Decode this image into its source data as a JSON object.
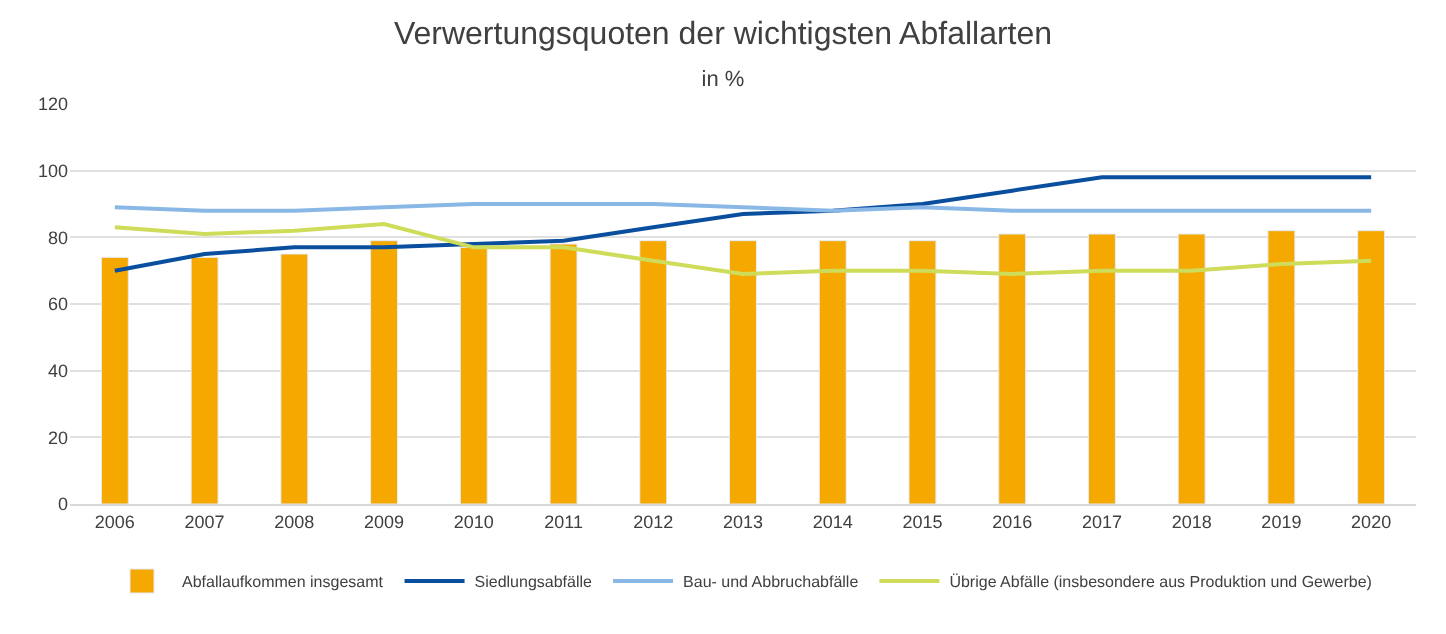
{
  "chart_data": {
    "type": "bar",
    "title": "Verwertungsquoten der wichtigsten Abfallarten",
    "subtitle": "in %",
    "categories": [
      "2006",
      "2007",
      "2008",
      "2009",
      "2010",
      "2011",
      "2012",
      "2013",
      "2014",
      "2015",
      "2016",
      "2017",
      "2018",
      "2019",
      "2020"
    ],
    "series": [
      {
        "name": "Abfallaufkommen insgesamt",
        "color": "#f5a800",
        "values": [
          74,
          74,
          75,
          79,
          77,
          78,
          79,
          79,
          79,
          79,
          81,
          81,
          81,
          82,
          82
        ]
      },
      {
        "name": "Siedlungsabfälle",
        "type": "line",
        "color": "#0a4f9e",
        "values": [
          70,
          75,
          77,
          77,
          78,
          79,
          83,
          87,
          88,
          90,
          94,
          98,
          98,
          98,
          98
        ]
      },
      {
        "name": "Bau- und Abbruchabfälle",
        "type": "line",
        "color": "#8ab8e6",
        "values": [
          89,
          88,
          88,
          89,
          90,
          90,
          90,
          89,
          88,
          89,
          88,
          88,
          88,
          88,
          88
        ]
      },
      {
        "name": "Übrige Abfälle (insbesondere aus Produktion und Gewerbe)",
        "type": "line",
        "color": "#cfdc5a",
        "values": [
          83,
          81,
          82,
          84,
          77,
          77,
          73,
          69,
          70,
          70,
          69,
          70,
          70,
          72,
          73
        ]
      }
    ],
    "ylim": [
      0,
      120
    ],
    "yticks": [
      0,
      20,
      40,
      60,
      80,
      100,
      120
    ],
    "grid": "y",
    "legend": "bottom",
    "marker": "none",
    "line_style": "solid"
  }
}
